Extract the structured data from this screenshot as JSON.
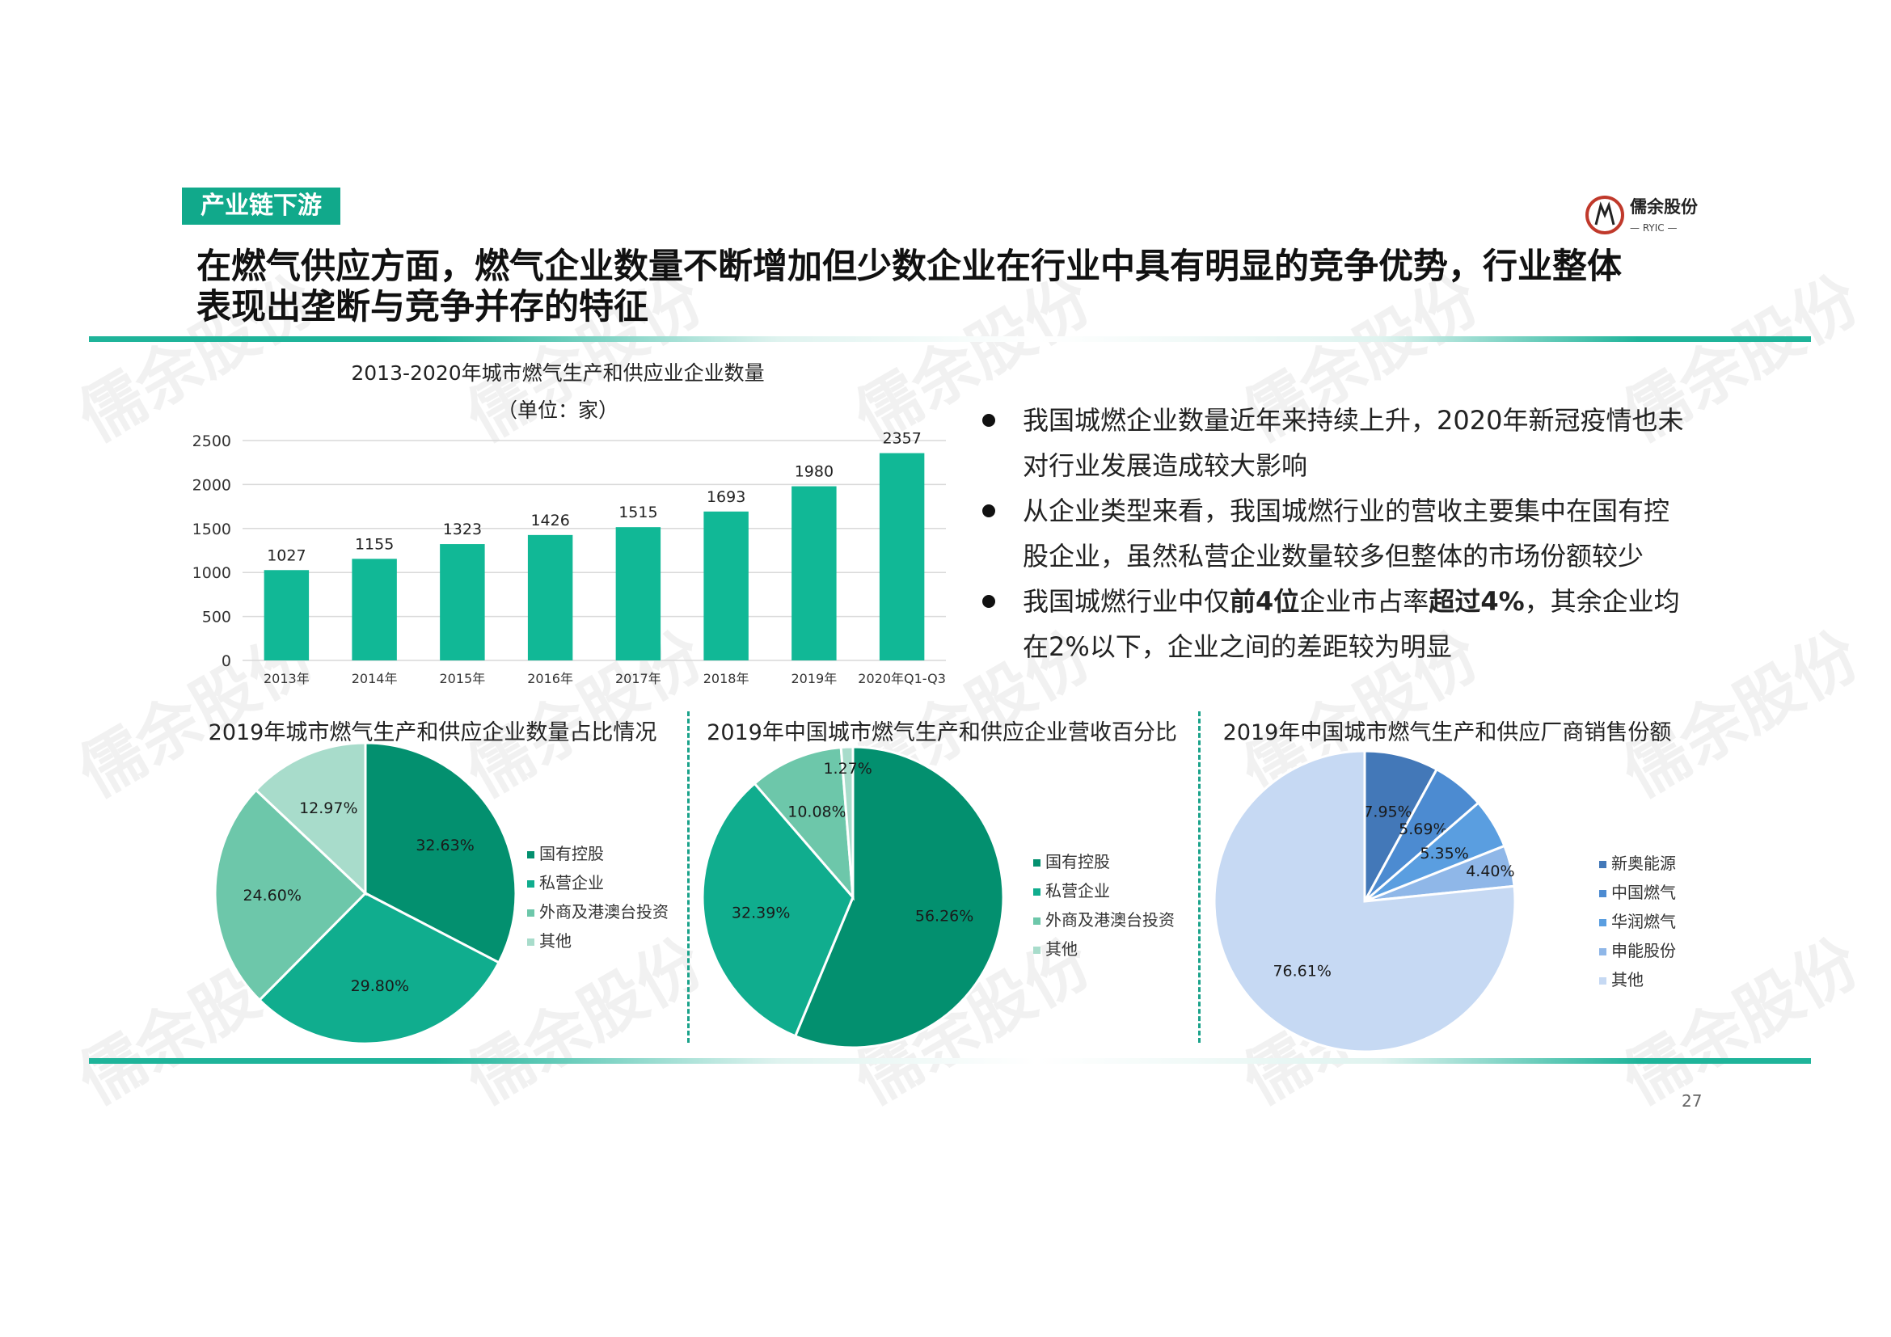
{
  "section_tag": "产业链下游",
  "brand": {
    "name": "儒余股份",
    "sub": "— RYIC —"
  },
  "headline": "在燃气供应方面，燃气企业数量不断增加但少数企业在行业中具有明显的竞争优势，行业整体表现出垄断与竞争并存的特征",
  "bullets": [
    {
      "segments": [
        {
          "text": "我国城燃企业数量近年来持续上升，2020年新冠疫情也未对行业发展造成较大影响",
          "bold": false
        }
      ]
    },
    {
      "segments": [
        {
          "text": "从企业类型来看，我国城燃行业的营收主要集中在国有控股企业，虽然私营企业数量较多但整体的市场份额较少",
          "bold": false
        }
      ]
    },
    {
      "segments": [
        {
          "text": "我国城燃行业中仅",
          "bold": false
        },
        {
          "text": "前4位",
          "bold": true
        },
        {
          "text": "企业市占率",
          "bold": false
        },
        {
          "text": "超过4%",
          "bold": true
        },
        {
          "text": "，其余企业均在2%以下，企业之间的差距较为明显",
          "bold": false
        }
      ]
    }
  ],
  "page_number": "27",
  "watermark_text": "儒余股份",
  "colors": {
    "teal": "#11a98b",
    "dark_teal": "#03906f",
    "accent_line": "#1fb49a"
  },
  "chart_data": [
    {
      "type": "bar",
      "title": "2013-2020年城市燃气生产和供应业企业数量",
      "subtitle": "（单位：家）",
      "categories": [
        "2013年",
        "2014年",
        "2015年",
        "2016年",
        "2017年",
        "2018年",
        "2019年",
        "2020年Q1-Q3"
      ],
      "values": [
        1027,
        1155,
        1323,
        1426,
        1515,
        1693,
        1980,
        2357
      ],
      "ylim": [
        0,
        2500
      ],
      "yticks": [
        0,
        500,
        1000,
        1500,
        2000,
        2500
      ],
      "grid": true,
      "color": "#11b896"
    },
    {
      "type": "pie",
      "title": "2019年城市燃气生产和供应企业数量占比情况",
      "labels": [
        "国有控股",
        "私营企业",
        "外商及港澳台投资",
        "其他"
      ],
      "values": [
        32.63,
        29.8,
        24.6,
        12.97
      ],
      "value_labels": [
        "32.63%",
        "29.80%",
        "24.60%",
        "12.97%"
      ],
      "colors": [
        "#03906f",
        "#10ad8e",
        "#6dc7aa",
        "#a8dccb"
      ],
      "legend": "right"
    },
    {
      "type": "pie",
      "title": "2019年中国城市燃气生产和供应企业营收百分比",
      "labels": [
        "国有控股",
        "私营企业",
        "外商及港澳台投资",
        "其他"
      ],
      "values": [
        56.26,
        32.39,
        10.08,
        1.27
      ],
      "value_labels": [
        "56.26%",
        "32.39%",
        "10.08%",
        "1.27%"
      ],
      "colors": [
        "#03906f",
        "#10ad8e",
        "#6dc7aa",
        "#a8dccb"
      ],
      "legend": "right"
    },
    {
      "type": "pie",
      "title": "2019年中国城市燃气生产和供应厂商销售份额",
      "labels": [
        "新奥能源",
        "中国燃气",
        "华润燃气",
        "申能股份",
        "其他"
      ],
      "values": [
        7.95,
        5.69,
        5.35,
        4.4,
        76.61
      ],
      "value_labels": [
        "7.95%",
        "5.69%",
        "5.35%",
        "4.40%",
        "76.61%"
      ],
      "colors": [
        "#4378b8",
        "#4c8bd1",
        "#5a9ee0",
        "#8fb7e8",
        "#c6d9f3"
      ],
      "legend": "right"
    }
  ]
}
